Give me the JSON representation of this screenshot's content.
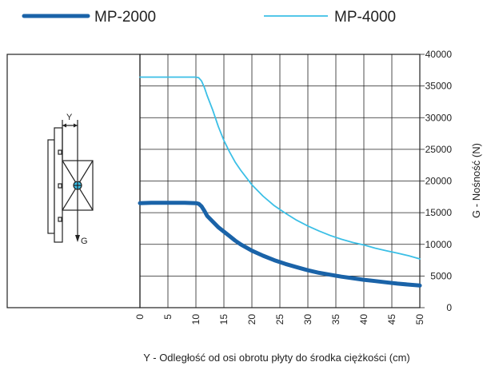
{
  "chart_data": {
    "type": "line",
    "title": "",
    "xlabel": "Y - Odległość od osi obrotu płyty do środka ciężkości (cm)",
    "ylabel": "G - Nośność (N)",
    "xlim": [
      0,
      50
    ],
    "ylim": [
      0,
      40000
    ],
    "xticks": [
      "0",
      "5",
      "10",
      "15",
      "20",
      "25",
      "30",
      "35",
      "40",
      "45",
      "50"
    ],
    "yticks": [
      "0",
      "5000",
      "10000",
      "15000",
      "20000",
      "25000",
      "30000",
      "35000",
      "40000"
    ],
    "grid": true,
    "legend_position": "top",
    "series": [
      {
        "name": "MP-2000",
        "color": "#1a63a8",
        "x": [
          0,
          2,
          4,
          6,
          8,
          10,
          10.5,
          11,
          11.5,
          12,
          13,
          14,
          15,
          16,
          17,
          18,
          20,
          22,
          24,
          26,
          28,
          30,
          32,
          34,
          36,
          38,
          40,
          42,
          44,
          46,
          48,
          50
        ],
        "y": [
          16500,
          16550,
          16550,
          16550,
          16550,
          16500,
          16400,
          16000,
          15300,
          14500,
          13600,
          12700,
          12000,
          11300,
          10600,
          10000,
          9000,
          8200,
          7500,
          6900,
          6400,
          5900,
          5500,
          5200,
          4900,
          4650,
          4400,
          4200,
          4000,
          3800,
          3650,
          3500
        ]
      },
      {
        "name": "MP-4000",
        "color": "#3bbfe6",
        "x": [
          0,
          2,
          4,
          6,
          8,
          10,
          10.5,
          11,
          11.5,
          12,
          13,
          14,
          15,
          16,
          17,
          18,
          20,
          22,
          24,
          26,
          28,
          30,
          32,
          34,
          36,
          38,
          40,
          42,
          44,
          46,
          48,
          50
        ],
        "y": [
          36400,
          36400,
          36400,
          36400,
          36400,
          36400,
          36300,
          35800,
          34800,
          33500,
          31200,
          28600,
          26400,
          24600,
          23000,
          21700,
          19400,
          17600,
          16100,
          14900,
          13800,
          12900,
          12100,
          11400,
          10800,
          10300,
          9900,
          9400,
          9000,
          8600,
          8200,
          7700
        ]
      }
    ]
  },
  "schematic": {
    "label_y": "Y",
    "label_g": "G"
  }
}
